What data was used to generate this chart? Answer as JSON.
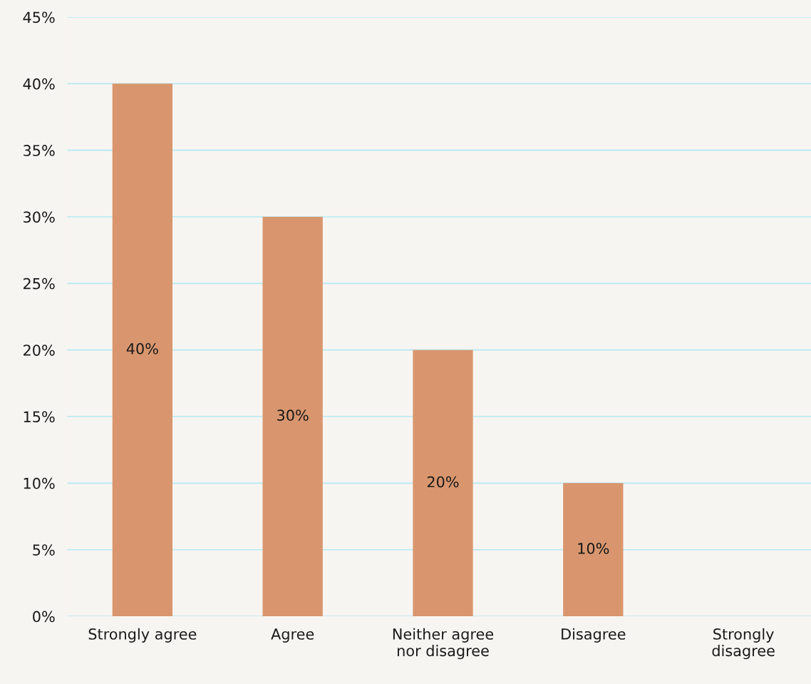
{
  "chart_data": {
    "type": "bar",
    "categories": [
      "Strongly agree",
      "Agree",
      "Neither agree\nnor disagree",
      "Disagree",
      "Strongly\ndisagree"
    ],
    "values": [
      40,
      30,
      20,
      10,
      0
    ],
    "value_labels": [
      "40%",
      "30%",
      "20%",
      "10%",
      null
    ],
    "color": "#d9966e",
    "ylim": [
      0,
      45
    ],
    "yticks": [
      {
        "value": 0,
        "label": "0%"
      },
      {
        "value": 5,
        "label": "5%"
      },
      {
        "value": 10,
        "label": "10%"
      },
      {
        "value": 15,
        "label": "15%"
      },
      {
        "value": 20,
        "label": "20%"
      },
      {
        "value": 25,
        "label": "25%"
      },
      {
        "value": 30,
        "label": "30%"
      },
      {
        "value": 35,
        "label": "35%"
      },
      {
        "value": 40,
        "label": "40%"
      },
      {
        "value": 45,
        "label": "45%"
      }
    ],
    "grid": "y",
    "legend": false
  }
}
